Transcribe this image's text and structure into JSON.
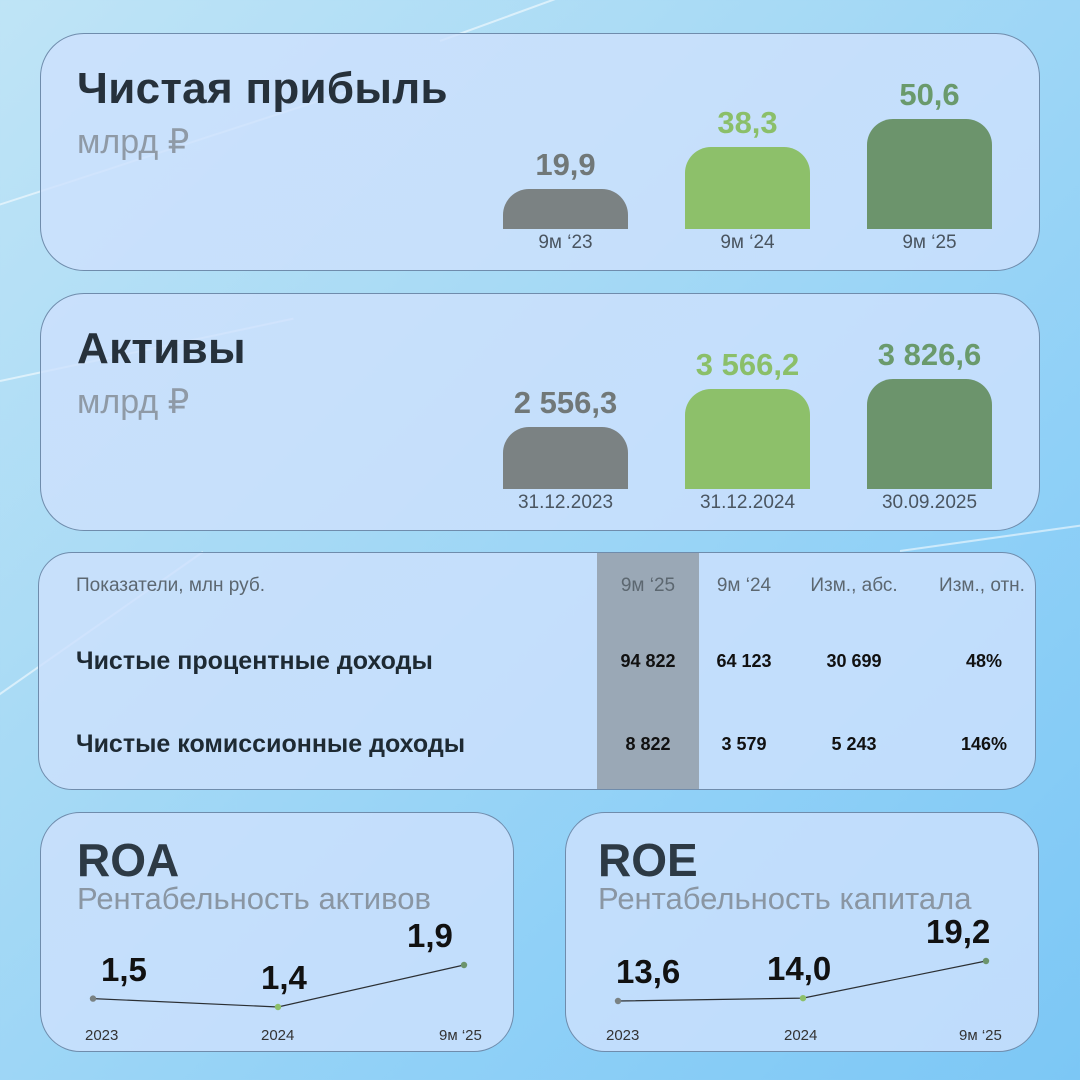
{
  "profit": {
    "title": "Чистая прибыль",
    "unit": "млрд ₽",
    "chart_data": {
      "type": "bar",
      "title": "Чистая прибыль",
      "ylabel": "млрд ₽",
      "categories": [
        "9м ‘23",
        "9м ‘24",
        "9м ‘25"
      ],
      "values": [
        19.9,
        38.3,
        50.6
      ],
      "labels": [
        "19,9",
        "38,3",
        "50,6"
      ]
    }
  },
  "assets": {
    "title": "Активы",
    "unit": "млрд ₽",
    "chart_data": {
      "type": "bar",
      "title": "Активы",
      "ylabel": "млрд ₽",
      "categories": [
        "31.12.2023",
        "31.12.2024",
        "30.09.2025"
      ],
      "values": [
        2556.3,
        3566.2,
        3826.6
      ],
      "labels": [
        "2 556,3",
        "3 566,2",
        "3 826,6"
      ]
    }
  },
  "bar_colors": {
    "gray": "#7b8283",
    "light_green": "#8dc06a",
    "dark_green": "#6c946c",
    "gray_text": "#717878",
    "light_green_text": "#8bbf69",
    "dark_green_text": "#6a9a6c"
  },
  "table": {
    "chart_data": {
      "type": "table",
      "headers": [
        "Показатели, млн руб.",
        "9м ‘25",
        "9м ‘24",
        "Изм., абс.",
        "Изм., отн."
      ],
      "rows": [
        [
          "Чистые процентные доходы",
          "94 822",
          "64 123",
          "30 699",
          "48%"
        ],
        [
          "Чистые комиссионные доходы",
          "8 822",
          "3 579",
          "5 243",
          "146%"
        ]
      ]
    }
  },
  "roa": {
    "title": "ROA",
    "subtitle": "Рентабельность активов",
    "chart_data": {
      "type": "line",
      "x": [
        "2023",
        "2024",
        "9м ‘25"
      ],
      "values": [
        1.5,
        1.4,
        1.9
      ],
      "labels": [
        "1,5",
        "1,4",
        "1,9"
      ]
    }
  },
  "roe": {
    "title": "ROE",
    "subtitle": "Рентабельность капитала",
    "chart_data": {
      "type": "line",
      "x": [
        "2023",
        "2024",
        "9м ‘25"
      ],
      "values": [
        13.6,
        14.0,
        19.2
      ],
      "labels": [
        "13,6",
        "14,0",
        "19,2"
      ]
    }
  }
}
